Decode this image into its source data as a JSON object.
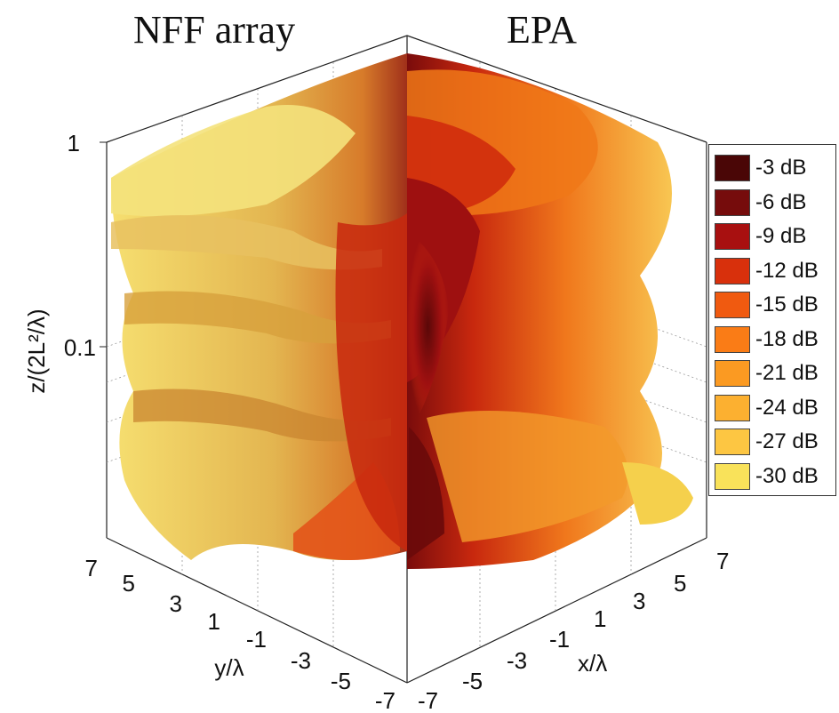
{
  "chart_data": {
    "type": "isosurface-3d",
    "panels": [
      {
        "title": "NFF array",
        "axis": "y"
      },
      {
        "title": "EPA",
        "axis": "x"
      }
    ],
    "zlabel": "z/(2L²/λ)",
    "ylabel": "y/λ",
    "xlabel": "x/λ",
    "z_scale": "log",
    "z_ticks": [
      "1",
      "0.1"
    ],
    "y_ticks": [
      "7",
      "5",
      "3",
      "1",
      "-1",
      "-3",
      "-5",
      "-7"
    ],
    "x_ticks": [
      "-7",
      "-5",
      "-3",
      "-1",
      "1",
      "3",
      "5",
      "7"
    ],
    "xlim": [
      -7,
      7
    ],
    "ylim": [
      -7,
      7
    ],
    "grid": true,
    "legend_placement": "right",
    "series": [
      {
        "name": "-3 dB",
        "color": "#4a0606"
      },
      {
        "name": "-6 dB",
        "color": "#760c0c"
      },
      {
        "name": "-9 dB",
        "color": "#a81010"
      },
      {
        "name": "-12 dB",
        "color": "#d8300c"
      },
      {
        "name": "-15 dB",
        "color": "#f05a10"
      },
      {
        "name": "-18 dB",
        "color": "#fa7c16"
      },
      {
        "name": "-21 dB",
        "color": "#fb9a22"
      },
      {
        "name": "-24 dB",
        "color": "#fcb030"
      },
      {
        "name": "-27 dB",
        "color": "#fdc642"
      },
      {
        "name": "-30 dB",
        "color": "#f9e25a"
      }
    ]
  }
}
